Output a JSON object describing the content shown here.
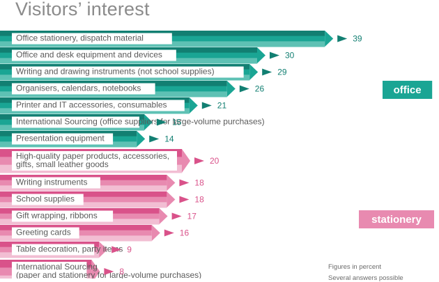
{
  "chart_data": {
    "type": "bar",
    "title": "Visitors’ interest",
    "note_lines": [
      "Figures in percent",
      "Several answers possible"
    ],
    "colors": {
      "office": [
        "#127f72",
        "#1aa594",
        "#5ec1b4"
      ],
      "stationery": [
        "#d9528a",
        "#e88ab0",
        "#f2bed3"
      ]
    },
    "groups": [
      {
        "name": "office",
        "items": [
          {
            "label": [
              "Office stationery, dispatch material"
            ],
            "value": 39
          },
          {
            "label": [
              "Office and desk equipment and devices"
            ],
            "value": 30
          },
          {
            "label": [
              "Writing and drawing instruments (not school supplies)"
            ],
            "value": 29
          },
          {
            "label": [
              "Organisers, calendars, notebooks"
            ],
            "value": 26
          },
          {
            "label": [
              "Printer and IT accessories, consumables"
            ],
            "value": 21
          },
          {
            "label": [
              "International Sourcing (office suppliers for large-volume purchases)"
            ],
            "value": 15
          },
          {
            "label": [
              "Presentation equipment"
            ],
            "value": 14
          }
        ]
      },
      {
        "name": "stationery",
        "items": [
          {
            "label": [
              "High-quality paper products, accessories,",
              "gifts, small leather goods"
            ],
            "value": 20
          },
          {
            "label": [
              "Writing instruments"
            ],
            "value": 18
          },
          {
            "label": [
              "School supplies"
            ],
            "value": 18
          },
          {
            "label": [
              "Gift wrapping, ribbons"
            ],
            "value": 17
          },
          {
            "label": [
              "Greeting cards"
            ],
            "value": 16
          },
          {
            "label": [
              "Table decoration, party items"
            ],
            "value": 9
          },
          {
            "label": [
              "International Sourcing",
              "(paper and stationery for large-volume purchases)"
            ],
            "value": 8
          }
        ]
      }
    ]
  }
}
